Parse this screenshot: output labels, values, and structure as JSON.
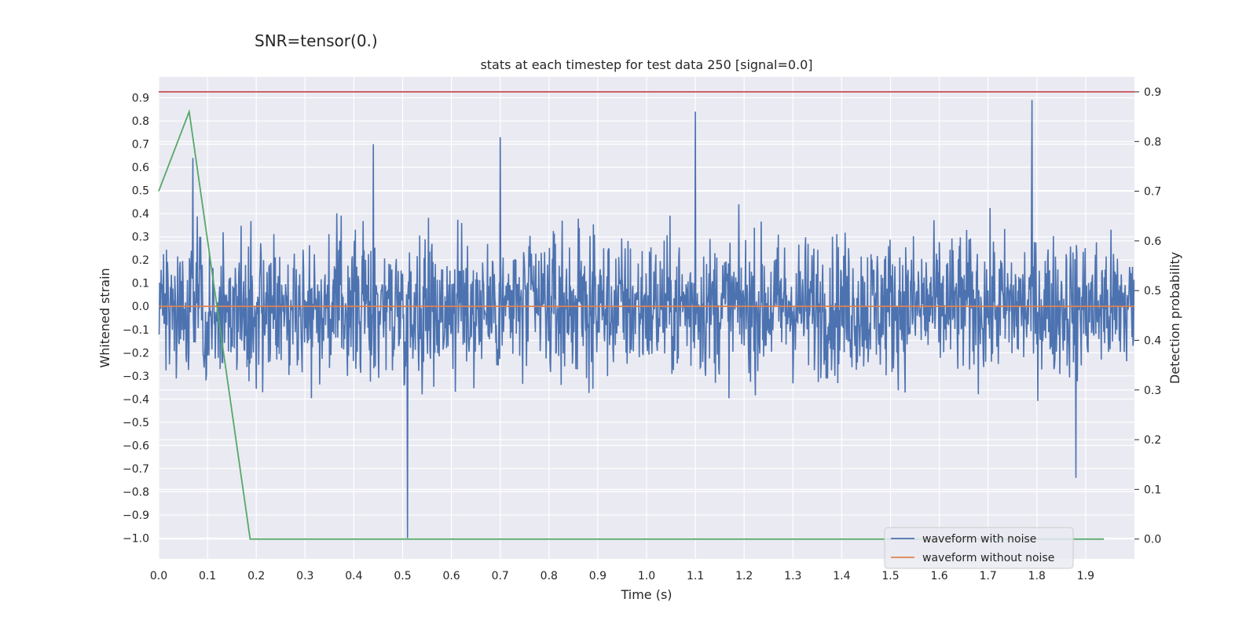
{
  "suptitle": "SNR=tensor(0.)",
  "chart_data": {
    "type": "line",
    "title": "stats at each timestep for test data 250 [signal=0.0]",
    "xlabel": "Time (s)",
    "ylabel": "Whitened strain",
    "ylabel_right": "Detection probability",
    "xlim": [
      0.0,
      2.0
    ],
    "ylim": [
      -1.09,
      0.99
    ],
    "ylim_right": [
      -0.04,
      0.93
    ],
    "xticks": [
      "0.0",
      "0.1",
      "0.2",
      "0.3",
      "0.4",
      "0.5",
      "0.6",
      "0.7",
      "0.8",
      "0.9",
      "1.0",
      "1.1",
      "1.2",
      "1.3",
      "1.4",
      "1.5",
      "1.6",
      "1.7",
      "1.8",
      "1.9"
    ],
    "yticks": [
      "0.9",
      "0.8",
      "0.7",
      "0.6",
      "0.5",
      "0.4",
      "0.3",
      "0.2",
      "0.1",
      "0.0",
      "−0.1",
      "−0.2",
      "−0.3",
      "−0.4",
      "−0.5",
      "−0.6",
      "−0.7",
      "−0.8",
      "−0.9",
      "−1.0"
    ],
    "yticks_right": [
      "0.9",
      "0.8",
      "0.7",
      "0.6",
      "0.5",
      "0.4",
      "0.3",
      "0.2",
      "0.1",
      "0.0"
    ],
    "grid": true,
    "legend_position": "bottom-right",
    "colors": {
      "noise": "#4c72b0",
      "clean": "#dd8452",
      "prob": "#55a868",
      "threshold": "#c44e52",
      "background": "#eaeaf2"
    },
    "series": [
      {
        "name": "waveform with noise",
        "axis": "left",
        "description_points": 2000,
        "peaks": [
          {
            "x": 0.07,
            "y": 0.64
          },
          {
            "x": 0.44,
            "y": 0.7
          },
          {
            "x": 0.51,
            "y": -1.0
          },
          {
            "x": 0.7,
            "y": 0.73
          },
          {
            "x": 1.1,
            "y": 0.84
          },
          {
            "x": 1.79,
            "y": 0.89
          },
          {
            "x": 1.88,
            "y": -0.74
          }
        ]
      },
      {
        "name": "waveform without noise",
        "axis": "left",
        "x": [
          0.0,
          2.0
        ],
        "y": [
          0.0,
          0.0
        ]
      },
      {
        "axis": "right",
        "x": [
          0.0,
          0.0625,
          0.1875,
          0.25,
          0.3125,
          0.5,
          1.0,
          1.5,
          1.9375
        ],
        "y": [
          0.7,
          0.86,
          0.0,
          0.0,
          0.0,
          0.0,
          0.0,
          0.0,
          0.0
        ]
      },
      {
        "axis": "right",
        "x": [
          0.0,
          2.0
        ],
        "y": [
          0.9,
          0.9
        ]
      }
    ]
  }
}
